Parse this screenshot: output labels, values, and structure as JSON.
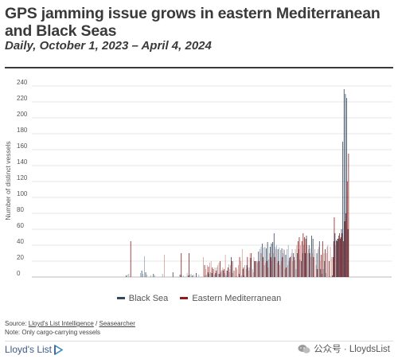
{
  "header": {
    "title": "GPS jamming issue grows in eastern Mediterranean and Black Seas",
    "subtitle": "Daily, October 1, 2023 – April 4, 2024"
  },
  "colors": {
    "black_sea": "#33475e",
    "eastern_med": "#8f1b1b",
    "eastern_med_light": "#d2a09a",
    "black_sea_light": "#9aa8bb",
    "grid": "#e4e4e4"
  },
  "chart_data": {
    "type": "bar",
    "title": "GPS jamming issue grows in eastern Mediterranean and Black Seas",
    "subtitle": "Daily, October 1, 2023 – April 4, 2024",
    "xlabel": "",
    "ylabel": "Number of distinct vessels",
    "ylim": [
      0,
      240
    ],
    "yticks": [
      0,
      20,
      40,
      60,
      80,
      100,
      120,
      140,
      160,
      180,
      200,
      220,
      240
    ],
    "x_start": "2023-10-01",
    "x_end": "2024-04-04",
    "legend_position": "bottom",
    "grid": true,
    "series": [
      {
        "name": "Black Sea",
        "values": [
          0,
          0,
          0,
          0,
          0,
          0,
          0,
          0,
          0,
          0,
          0,
          0,
          0,
          0,
          0,
          0,
          0,
          0,
          0,
          0,
          0,
          0,
          0,
          0,
          0,
          0,
          0,
          0,
          0,
          0,
          0,
          0,
          0,
          0,
          0,
          0,
          0,
          0,
          0,
          0,
          0,
          0,
          0,
          0,
          0,
          0,
          0,
          0,
          2,
          3,
          4,
          0,
          0,
          0,
          0,
          0,
          0,
          0,
          0,
          5,
          8,
          4,
          26,
          6,
          3,
          0,
          0,
          2,
          0,
          4,
          2,
          0,
          0,
          0,
          0,
          0,
          4,
          0,
          0,
          0,
          0,
          0,
          0,
          0,
          6,
          0,
          0,
          0,
          0,
          3,
          3,
          0,
          2,
          0,
          0,
          5,
          2,
          3,
          4,
          2,
          3,
          0,
          5,
          0,
          3,
          0,
          0,
          0,
          0,
          2,
          3,
          6,
          4,
          6,
          5,
          10,
          3,
          5,
          12,
          4,
          4,
          6,
          9,
          8,
          5,
          2,
          8,
          16,
          10,
          25,
          5,
          8,
          0,
          1,
          0,
          4,
          1,
          2,
          10,
          2,
          0,
          15,
          12,
          12,
          24,
          0,
          6,
          20,
          20,
          20,
          32,
          35,
          38,
          42,
          37,
          38,
          36,
          44,
          22,
          38,
          42,
          44,
          55,
          38,
          40,
          35,
          37,
          34,
          36,
          30,
          34,
          28,
          35,
          40,
          24,
          26,
          35,
          30,
          21,
          10,
          30,
          35,
          22,
          20,
          30,
          40,
          30,
          52,
          30,
          40,
          36,
          52,
          48,
          0,
          0,
          30,
          35,
          45,
          10,
          4,
          10,
          20,
          5,
          38,
          0,
          1,
          0,
          2,
          45,
          55,
          46,
          48,
          52,
          48,
          60,
          170,
          236,
          230,
          225,
          60,
          0
        ],
        "color": "#33475e"
      },
      {
        "name": "Eastern Mediterranean",
        "values": [
          0,
          0,
          0,
          0,
          0,
          0,
          0,
          0,
          0,
          0,
          0,
          0,
          0,
          0,
          0,
          0,
          0,
          0,
          0,
          0,
          0,
          0,
          0,
          0,
          0,
          0,
          0,
          0,
          0,
          0,
          0,
          0,
          0,
          0,
          0,
          0,
          0,
          0,
          0,
          0,
          0,
          0,
          0,
          0,
          0,
          0,
          0,
          0,
          0,
          0,
          0,
          45,
          0,
          0,
          0,
          0,
          0,
          0,
          0,
          0,
          0,
          0,
          0,
          0,
          0,
          0,
          0,
          0,
          0,
          0,
          0,
          0,
          0,
          0,
          0,
          0,
          0,
          28,
          0,
          0,
          0,
          0,
          0,
          0,
          0,
          0,
          0,
          0,
          0,
          0,
          30,
          0,
          0,
          0,
          0,
          0,
          30,
          0,
          0,
          0,
          0,
          0,
          0,
          0,
          0,
          0,
          0,
          25,
          15,
          10,
          15,
          13,
          18,
          20,
          12,
          10,
          12,
          8,
          15,
          18,
          20,
          8,
          12,
          10,
          28,
          8,
          12,
          6,
          15,
          20,
          20,
          8,
          12,
          10,
          15,
          25,
          20,
          35,
          12,
          15,
          10,
          25,
          8,
          30,
          30,
          10,
          25,
          20,
          20,
          18,
          20,
          30,
          30,
          25,
          15,
          18,
          20,
          12,
          30,
          25,
          20,
          30,
          25,
          35,
          18,
          20,
          15,
          20,
          25,
          35,
          10,
          12,
          15,
          20,
          25,
          30,
          20,
          25,
          35,
          40,
          45,
          50,
          40,
          45,
          55,
          50,
          48,
          40,
          35,
          30,
          25,
          30,
          25,
          35,
          15,
          10,
          38,
          20,
          28,
          45,
          30,
          35,
          30,
          40,
          20,
          38,
          25,
          25,
          75,
          40,
          45,
          48,
          55,
          50,
          55,
          45,
          70,
          80,
          120,
          155
        ],
        "color": "#8f1b1b"
      }
    ]
  },
  "legend": {
    "black_sea": "Black Sea",
    "eastern_med": "Eastern Mediterranean"
  },
  "footer": {
    "source_prefix": "Source: ",
    "source_link1": "Lloyd's List Intelligence",
    "source_sep": " / ",
    "source_link2": "Seasearcher",
    "note": "Note: Only cargo-carrying vessels",
    "logo_text": "Lloyd's List",
    "watermark": "公众号 · LloydsList"
  }
}
